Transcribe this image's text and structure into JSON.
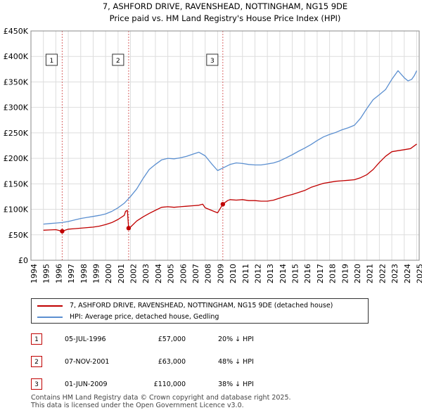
{
  "chart_data": {
    "type": "line",
    "title": "7, ASHFORD DRIVE, RAVENSHEAD, NOTTINGHAM, NG15 9DE",
    "subtitle": "Price paid vs. HM Land Registry's House Price Index (HPI)",
    "xlabel": "",
    "ylabel": "",
    "xlim": [
      1994,
      2025.2
    ],
    "ylim": [
      0,
      450000
    ],
    "x_ticks": [
      1994,
      1995,
      1996,
      1997,
      1998,
      1999,
      2000,
      2001,
      2002,
      2003,
      2004,
      2005,
      2006,
      2007,
      2008,
      2009,
      2010,
      2011,
      2012,
      2013,
      2014,
      2015,
      2016,
      2017,
      2018,
      2019,
      2020,
      2021,
      2022,
      2023,
      2024,
      2025
    ],
    "y_ticks": [
      0,
      50000,
      100000,
      150000,
      200000,
      250000,
      300000,
      350000,
      400000,
      450000
    ],
    "y_tick_labels": [
      "£0",
      "£50K",
      "£100K",
      "£150K",
      "£200K",
      "£250K",
      "£300K",
      "£350K",
      "£400K",
      "£450K"
    ],
    "grid": true,
    "series": [
      {
        "name": "7, ASHFORD DRIVE, RAVENSHEAD, NOTTINGHAM, NG15 9DE (detached house)",
        "color": "#c00000",
        "x": [
          1995.0,
          1995.5,
          1996.0,
          1996.51,
          1997.0,
          1997.5,
          1998.0,
          1998.5,
          1999.0,
          1999.5,
          2000.0,
          2000.5,
          2001.0,
          2001.5,
          2001.6,
          2001.75,
          2001.85,
          2002.0,
          2002.5,
          2003.0,
          2003.5,
          2004.0,
          2004.5,
          2005.0,
          2005.5,
          2006.0,
          2006.5,
          2007.0,
          2007.5,
          2007.8,
          2008.0,
          2008.5,
          2009.0,
          2009.42,
          2009.8,
          2010.0,
          2010.5,
          2011.0,
          2011.5,
          2012.0,
          2012.5,
          2013.0,
          2013.5,
          2014.0,
          2014.5,
          2015.0,
          2015.5,
          2016.0,
          2016.5,
          2017.0,
          2017.5,
          2018.0,
          2018.5,
          2019.0,
          2019.5,
          2020.0,
          2020.5,
          2021.0,
          2021.5,
          2022.0,
          2022.5,
          2023.0,
          2023.5,
          2024.0,
          2024.5,
          2025.0
        ],
        "values": [
          59000,
          59500,
          60000,
          57000,
          61000,
          62000,
          63000,
          64000,
          65000,
          67000,
          70000,
          74000,
          80000,
          88000,
          96000,
          98000,
          63000,
          65000,
          77000,
          85000,
          92000,
          98000,
          104000,
          105000,
          104000,
          105000,
          106000,
          107000,
          108000,
          110000,
          103000,
          98000,
          93000,
          110000,
          117000,
          119000,
          118000,
          119000,
          117000,
          117000,
          116000,
          116000,
          118000,
          122000,
          126000,
          129000,
          133000,
          137000,
          143000,
          147000,
          151000,
          153000,
          155000,
          156000,
          157000,
          158000,
          162000,
          168000,
          178000,
          192000,
          204000,
          213000,
          215000,
          217000,
          219000,
          228000
        ]
      },
      {
        "name": "HPI: Average price, detached house, Gedling",
        "color": "#5b8fd0",
        "x": [
          1995.0,
          1995.5,
          1996.0,
          1996.5,
          1997.0,
          1997.5,
          1998.0,
          1998.5,
          1999.0,
          1999.5,
          2000.0,
          2000.5,
          2001.0,
          2001.5,
          2002.0,
          2002.5,
          2003.0,
          2003.5,
          2004.0,
          2004.5,
          2005.0,
          2005.5,
          2006.0,
          2006.5,
          2007.0,
          2007.5,
          2008.0,
          2008.5,
          2009.0,
          2009.5,
          2010.0,
          2010.5,
          2011.0,
          2011.5,
          2012.0,
          2012.5,
          2013.0,
          2013.5,
          2014.0,
          2014.5,
          2015.0,
          2015.5,
          2016.0,
          2016.5,
          2017.0,
          2017.5,
          2018.0,
          2018.5,
          2019.0,
          2019.5,
          2020.0,
          2020.5,
          2021.0,
          2021.5,
          2022.0,
          2022.5,
          2023.0,
          2023.5,
          2024.0,
          2024.3,
          2024.6,
          2024.8,
          2025.0
        ],
        "values": [
          71000,
          72000,
          73000,
          74000,
          76000,
          79000,
          82000,
          84000,
          86000,
          88000,
          91000,
          96000,
          103000,
          112000,
          125000,
          140000,
          160000,
          178000,
          188000,
          197000,
          200000,
          199000,
          201000,
          204000,
          208000,
          212000,
          205000,
          190000,
          176000,
          182000,
          188000,
          191000,
          190000,
          188000,
          187000,
          187000,
          189000,
          191000,
          195000,
          201000,
          207000,
          214000,
          220000,
          227000,
          235000,
          242000,
          247000,
          251000,
          256000,
          260000,
          265000,
          279000,
          298000,
          315000,
          325000,
          335000,
          355000,
          372000,
          358000,
          352000,
          355000,
          362000,
          372000
        ]
      }
    ],
    "sale_markers": [
      {
        "label": "1",
        "x": 1996.51,
        "value": 57000
      },
      {
        "label": "2",
        "x": 2001.85,
        "value": 63000
      },
      {
        "label": "3",
        "x": 2009.42,
        "value": 110000
      }
    ]
  },
  "legend": {
    "property_label": "7, ASHFORD DRIVE, RAVENSHEAD, NOTTINGHAM, NG15 9DE (detached house)",
    "hpi_label": "HPI: Average price, detached house, Gedling"
  },
  "sales": [
    {
      "num": "1",
      "date": "05-JUL-1996",
      "price": "£57,000",
      "hpi": "20% ↓ HPI"
    },
    {
      "num": "2",
      "date": "07-NOV-2001",
      "price": "£63,000",
      "hpi": "48% ↓ HPI"
    },
    {
      "num": "3",
      "date": "01-JUN-2009",
      "price": "£110,000",
      "hpi": "38% ↓ HPI"
    }
  ],
  "footer": {
    "line1": "Contains HM Land Registry data © Crown copyright and database right 2025.",
    "line2": "This data is licensed under the Open Government Licence v3.0."
  },
  "colors": {
    "property": "#c00000",
    "hpi": "#5b8fd0",
    "grid": "#dddddd",
    "plot_bg": "#ffffff"
  }
}
